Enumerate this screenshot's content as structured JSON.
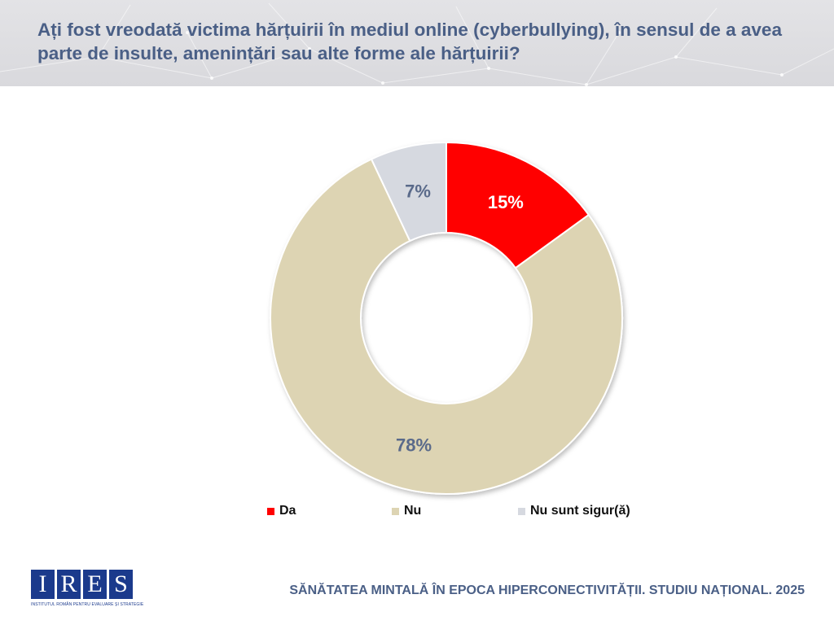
{
  "header": {
    "question": "Ați fost vreodată victima hărțuirii în mediul online (cyberbullying), în sensul de a avea parte de insulte, amenințări sau alte forme ale hărțuirii?"
  },
  "chart_data": {
    "type": "pie",
    "variant": "donut",
    "title": "",
    "categories": [
      "Da",
      "Nu",
      "Nu sunt sigur(ă)"
    ],
    "values": [
      15,
      78,
      7
    ],
    "labels": [
      "15%",
      "78%",
      "7%"
    ],
    "colors": [
      "#ff0000",
      "#ddd4b3",
      "#d6d9e0"
    ],
    "label_colors": [
      "#ffffff",
      "#5a6a8a",
      "#5a6a8a"
    ],
    "legend_position": "bottom",
    "start": "top",
    "direction": "clockwise"
  },
  "legend": {
    "items": [
      {
        "label": "Da",
        "color": "#ff0000"
      },
      {
        "label": "Nu",
        "color": "#ddd4b3"
      },
      {
        "label": "Nu sunt sigur(ă)",
        "color": "#d6d9e0"
      }
    ]
  },
  "logo": {
    "letters": [
      "I",
      "R",
      "E",
      "S"
    ],
    "tagline": "INSTITUTUL ROMÂN PENTRU EVALUARE ȘI STRATEGIE"
  },
  "footer": {
    "text": "SĂNĂTATEA MINTALĂ ÎN EPOCA HIPERCONECTIVITĂȚII. STUDIU NAȚIONAL. 2025"
  }
}
